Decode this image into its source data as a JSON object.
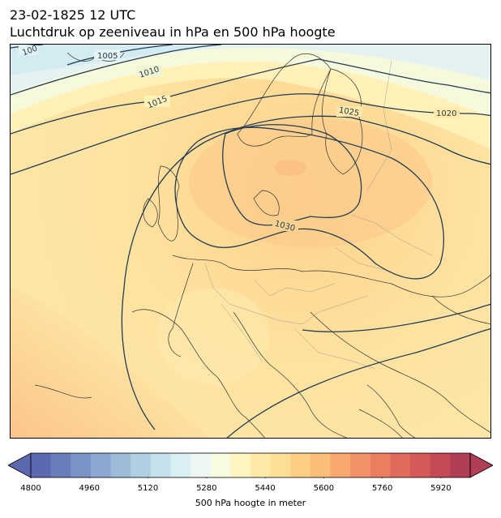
{
  "header": {
    "datetime": "23-02-1825 12 UTC",
    "title": "Luchtdruk op zeeniveau in hPa en 500 hPa hoogte"
  },
  "map": {
    "region": "Europe",
    "isobar_labels": [
      "100",
      "1005",
      "1010",
      "1015",
      "1025",
      "1020",
      "1030"
    ],
    "isobar_color": "#243c52",
    "coastline_color": "#333333"
  },
  "colorbar": {
    "label": "500 hPa hoogte in meter",
    "range": [
      4800,
      6000
    ],
    "ticks": [
      "4800",
      "4960",
      "5120",
      "5280",
      "5440",
      "5600",
      "5760",
      "5920"
    ],
    "colors": [
      "#5c68b0",
      "#6a7dbb",
      "#7b93c6",
      "#8aa8d0",
      "#9dbcd9",
      "#b1cfe3",
      "#c6e0ec",
      "#daeff4",
      "#ecf7f3",
      "#f8fbe0",
      "#fdf5c0",
      "#fee9a6",
      "#fedd94",
      "#fdcf86",
      "#fbbd7a",
      "#f7a86f",
      "#f29267",
      "#eb7d60",
      "#e06a5c",
      "#d45a5a",
      "#c54a58",
      "#b03e55"
    ]
  }
}
